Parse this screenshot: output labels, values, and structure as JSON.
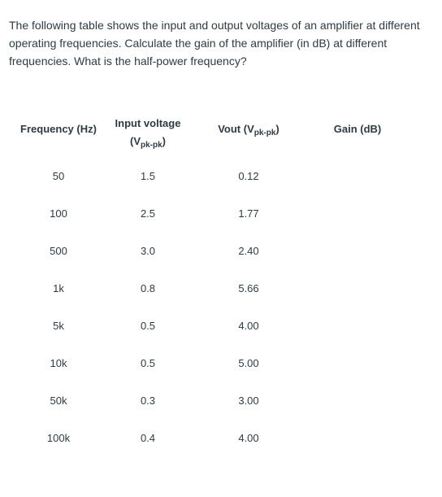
{
  "question": {
    "text": "The following table shows the input and output voltages of an amplifier at different operating frequencies. Calculate the gain of the amplifier (in dB) at different frequencies. What is the half-power frequency?"
  },
  "table": {
    "headers": {
      "frequency": "Frequency (Hz)",
      "input_line1": "Input voltage",
      "input_line2_open": "(V",
      "input_line2_sub": "pk-pk",
      "input_line2_close": ")",
      "vout_main": "Vout (V",
      "vout_sub": "pk-pk",
      "vout_close": ")",
      "gain": "Gain (dB)"
    },
    "rows": [
      {
        "freq": "50",
        "vin": "1.5",
        "vout": "0.12",
        "gain": ""
      },
      {
        "freq": "100",
        "vin": "2.5",
        "vout": "1.77",
        "gain": ""
      },
      {
        "freq": "500",
        "vin": "3.0",
        "vout": "2.40",
        "gain": ""
      },
      {
        "freq": "1k",
        "vin": "0.8",
        "vout": "5.66",
        "gain": ""
      },
      {
        "freq": "5k",
        "vin": "0.5",
        "vout": "4.00",
        "gain": ""
      },
      {
        "freq": "10k",
        "vin": "0.5",
        "vout": "5.00",
        "gain": ""
      },
      {
        "freq": "50k",
        "vin": "0.3",
        "vout": "3.00",
        "gain": ""
      },
      {
        "freq": "100k",
        "vin": "0.4",
        "vout": "4.00",
        "gain": ""
      }
    ]
  }
}
